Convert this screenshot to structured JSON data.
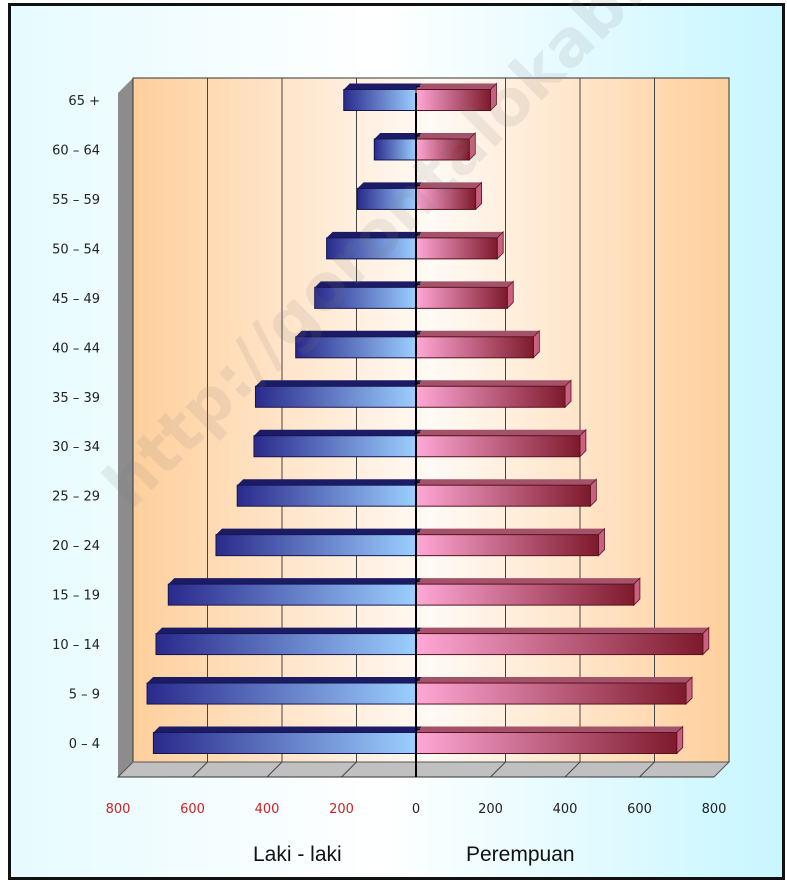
{
  "chart_data": {
    "type": "bar",
    "orientation": "horizontal",
    "layout": "population-pyramid",
    "categories": [
      "0 – 4",
      "5 – 9",
      "10 – 14",
      "15 – 19",
      "20 – 24",
      "25 – 29",
      "30 – 34",
      "35 – 39",
      "40 – 44",
      "45 – 49",
      "50 – 54",
      "55 – 59",
      "60 – 64",
      "65 +"
    ],
    "series": [
      {
        "name": "Laki - laki",
        "values": [
          705,
          722,
          698,
          665,
          537,
          480,
          435,
          431,
          323,
          272,
          240,
          157,
          112,
          194
        ]
      },
      {
        "name": "Perempuan",
        "values": [
          700,
          725,
          770,
          585,
          490,
          468,
          440,
          400,
          315,
          245,
          218,
          160,
          143,
          200
        ]
      }
    ],
    "x_ticks": [
      "800",
      "600",
      "400",
      "200",
      "0",
      "200",
      "400",
      "600",
      "800"
    ],
    "xlim": [
      -800,
      800
    ],
    "grid": true,
    "colors": {
      "male_dark": "#2a2a8c",
      "male_light": "#9ccfff",
      "female_light": "#ffa8d6",
      "female_dark": "#7e1a2c",
      "wall": "#ffd3a6",
      "left_tick_text": "#cc2222",
      "right_tick_text": "#222222"
    },
    "legend": {
      "male": "Laki - laki",
      "female": "Perempuan",
      "placement": "bottom"
    },
    "watermark": "http://gorontalokab.bps.go.id"
  }
}
